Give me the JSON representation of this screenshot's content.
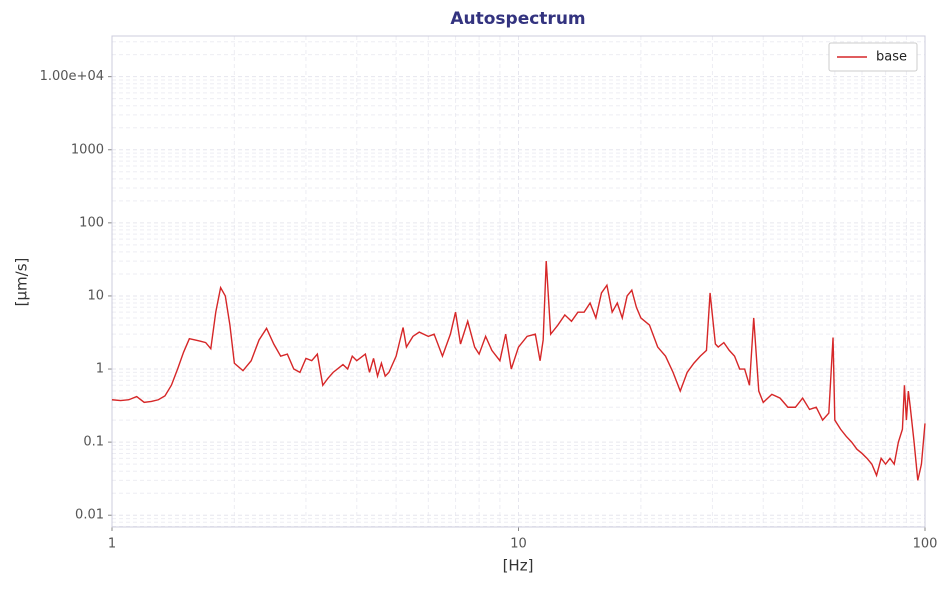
{
  "chart_data": {
    "type": "line",
    "title": "Autospectrum",
    "x_label": "[Hz]",
    "y_label": "[µm/s]",
    "x": [
      1,
      1.05,
      1.1,
      1.15,
      1.2,
      1.25,
      1.3,
      1.35,
      1.4,
      1.45,
      1.5,
      1.55,
      1.6,
      1.65,
      1.7,
      1.75,
      1.8,
      1.85,
      1.9,
      1.95,
      2.0,
      2.1,
      2.2,
      2.3,
      2.4,
      2.5,
      2.6,
      2.7,
      2.8,
      2.9,
      3.0,
      3.1,
      3.2,
      3.3,
      3.4,
      3.5,
      3.7,
      3.8,
      3.9,
      4.0,
      4.2,
      4.3,
      4.4,
      4.5,
      4.6,
      4.7,
      4.8,
      5.0,
      5.2,
      5.3,
      5.5,
      5.7,
      6.0,
      6.2,
      6.5,
      6.8,
      7.0,
      7.2,
      7.5,
      7.8,
      8.0,
      8.3,
      8.6,
      9.0,
      9.3,
      9.6,
      10,
      10.5,
      11,
      11.3,
      11.5,
      11.7,
      12,
      12.5,
      13,
      13.5,
      14,
      14.5,
      15,
      15.5,
      16,
      16.5,
      17,
      17.5,
      18,
      18.5,
      19,
      19.5,
      20,
      21,
      22,
      23,
      24,
      25,
      26,
      27,
      28,
      29,
      29.6,
      30.5,
      31,
      32,
      33,
      34,
      35,
      36,
      37,
      37.9,
      39,
      40,
      42,
      44,
      46,
      48,
      50,
      52,
      54,
      56,
      58,
      59.4,
      60,
      62,
      64,
      66,
      68,
      70,
      72,
      74,
      76,
      78,
      80,
      82,
      84,
      86,
      88,
      89,
      90,
      91,
      92,
      94,
      96,
      98,
      100
    ],
    "series": [
      {
        "name": "base",
        "color": "#d62728",
        "values": [
          0.38,
          0.37,
          0.38,
          0.42,
          0.35,
          0.36,
          0.38,
          0.43,
          0.6,
          1.0,
          1.7,
          2.6,
          2.5,
          2.4,
          2.3,
          1.9,
          6,
          13,
          10,
          4,
          1.2,
          0.95,
          1.3,
          2.5,
          3.6,
          2.2,
          1.5,
          1.6,
          1.0,
          0.9,
          1.4,
          1.3,
          1.6,
          0.6,
          0.75,
          0.9,
          1.15,
          1.0,
          1.5,
          1.3,
          1.6,
          0.9,
          1.4,
          0.8,
          1.2,
          0.8,
          0.9,
          1.5,
          3.7,
          2.0,
          2.8,
          3.2,
          2.8,
          3.0,
          1.5,
          3.0,
          6.0,
          2.2,
          4.5,
          2.0,
          1.6,
          2.8,
          1.8,
          1.3,
          3.0,
          1.0,
          2.0,
          2.8,
          3.0,
          1.3,
          2.5,
          30,
          3.0,
          4.0,
          5.5,
          4.5,
          6,
          6,
          8,
          5,
          11,
          14,
          6,
          8,
          5,
          10,
          12,
          7,
          5,
          4,
          2,
          1.5,
          0.9,
          0.5,
          0.9,
          1.2,
          1.5,
          1.8,
          11,
          2.2,
          2.0,
          2.3,
          1.8,
          1.5,
          1.0,
          1.0,
          0.6,
          5,
          0.5,
          0.35,
          0.45,
          0.4,
          0.3,
          0.3,
          0.4,
          0.28,
          0.3,
          0.2,
          0.25,
          2.7,
          0.2,
          0.15,
          0.12,
          0.1,
          0.08,
          0.07,
          0.06,
          0.05,
          0.035,
          0.06,
          0.05,
          0.06,
          0.05,
          0.1,
          0.15,
          0.6,
          0.2,
          0.5,
          0.3,
          0.1,
          0.03,
          0.05,
          0.18
        ]
      }
    ],
    "xlim": [
      1,
      100
    ],
    "ylim": [
      0.0069,
      36000
    ],
    "xticks": [
      1,
      10,
      100
    ],
    "yticks": [
      0.01,
      0.1,
      1,
      10,
      100,
      1000,
      {
        "value": 10000,
        "label": "1.00e+04"
      }
    ],
    "log_x": true,
    "log_y": true,
    "grid": true,
    "legend": "upper right"
  }
}
